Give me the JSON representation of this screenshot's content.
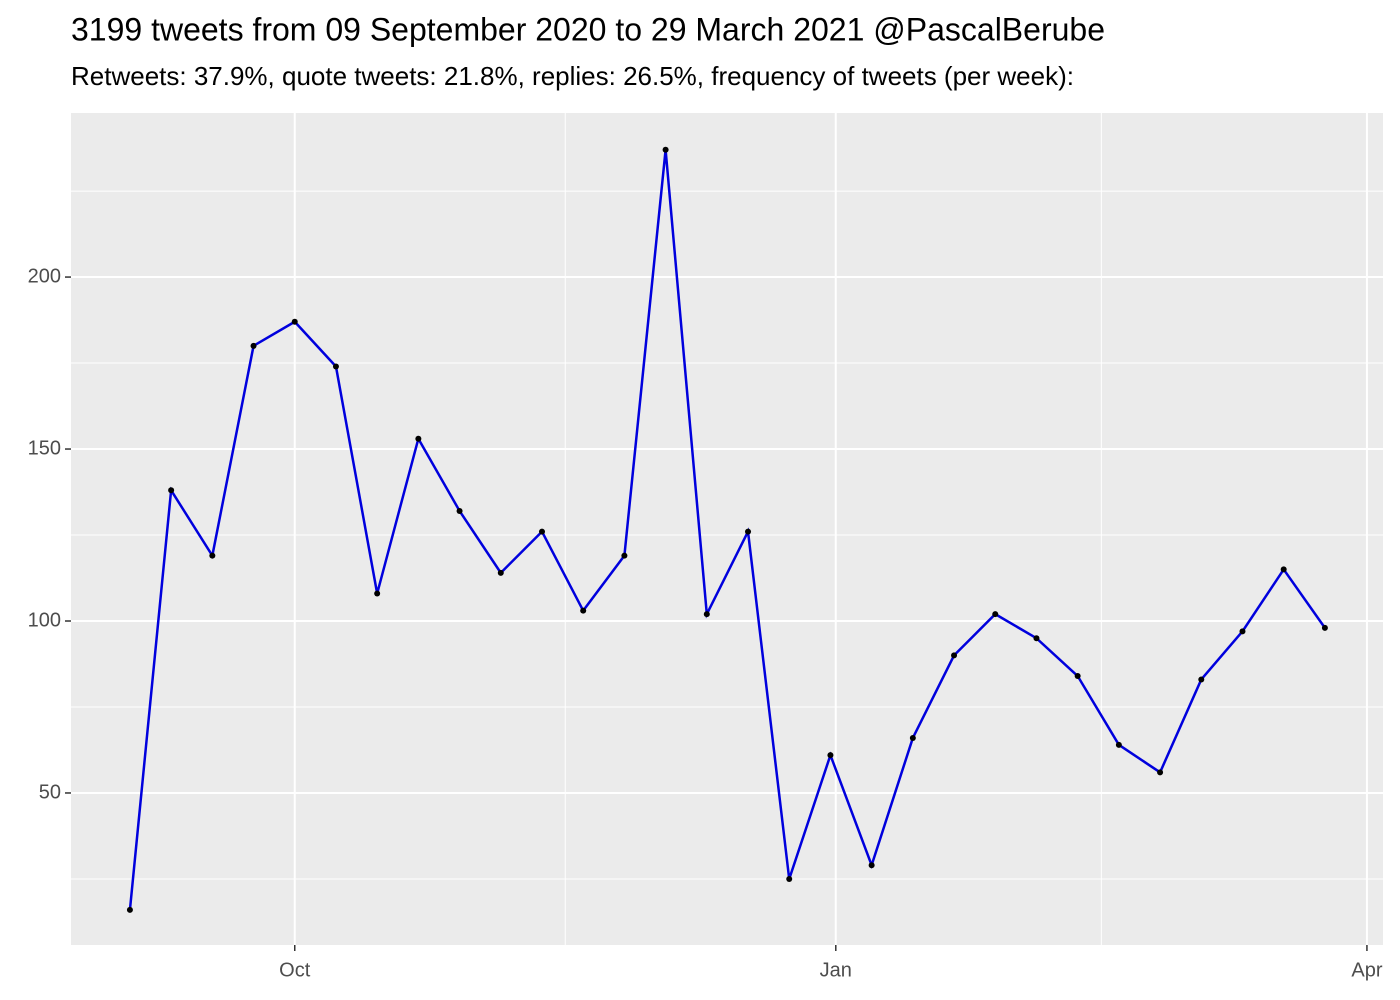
{
  "chart_data": {
    "type": "line",
    "title": "3199 tweets from 09 September 2020 to 29 March 2021 @PascalBerube",
    "subtitle": "Retweets: 37.9%, quote tweets: 21.8%, replies: 26.5%, frequency of tweets (per week):",
    "x": [
      0,
      1,
      2,
      3,
      4,
      5,
      6,
      7,
      8,
      9,
      10,
      11,
      12,
      13,
      14,
      15,
      16,
      17,
      18,
      19,
      20,
      21,
      22,
      23,
      24,
      25,
      26,
      27,
      28,
      29
    ],
    "values": [
      16,
      138,
      119,
      180,
      187,
      174,
      108,
      153,
      132,
      114,
      126,
      103,
      119,
      237,
      102,
      126,
      25,
      61,
      29,
      66,
      90,
      102,
      95,
      84,
      64,
      56,
      83,
      97,
      115,
      98
    ],
    "color": "#0000dd",
    "marker_color": "#000000",
    "xlim": [
      -1.43,
      30.41
    ],
    "xticks": [
      {
        "value": 4,
        "label": "Oct"
      },
      {
        "value": 17.13,
        "label": "Jan"
      },
      {
        "value": 30.02,
        "label": "Apr"
      }
    ],
    "ylim": [
      5.8,
      247.7
    ],
    "yticks": [
      50,
      100,
      150,
      200
    ],
    "grid": true
  }
}
